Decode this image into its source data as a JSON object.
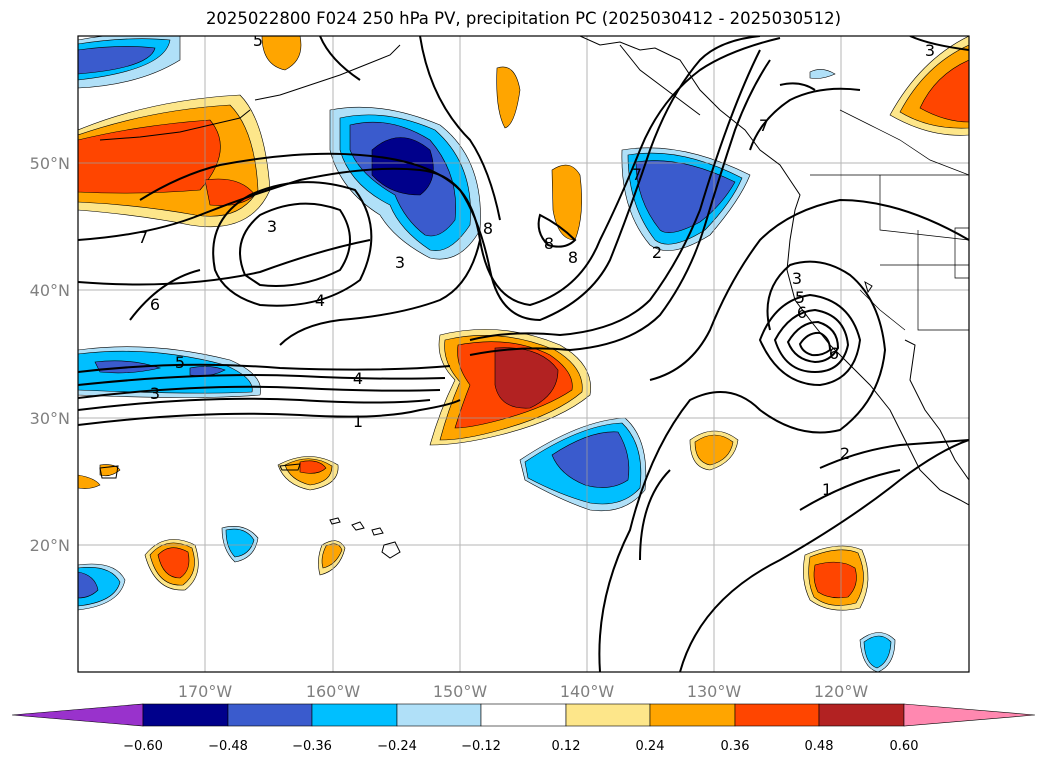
{
  "title": "2025022800 F024 250 hPa PV, precipitation PC (2025030412 - 2025030512)",
  "lat_labels": [
    "50°N",
    "40°N",
    "30°N",
    "20°N"
  ],
  "lon_labels": [
    "170°W",
    "160°W",
    "150°W",
    "140°W",
    "130°W",
    "120°W"
  ],
  "colorbar": {
    "ticks": [
      "−0.60",
      "−0.48",
      "−0.36",
      "−0.24",
      "−0.12",
      "0.12",
      "0.24",
      "0.36",
      "0.48",
      "0.60"
    ],
    "colors": [
      "#9932cc",
      "#00008b",
      "#3a5bcd",
      "#00bfff",
      "#b0e0f8",
      "#ffffff",
      "#fde68a",
      "#ffa500",
      "#ff4500",
      "#b22222",
      "#ff88b0"
    ]
  },
  "contour_labels": [
    "1",
    "2",
    "3",
    "4",
    "5",
    "6",
    "7",
    "8",
    "1",
    "2",
    "3",
    "4",
    "5",
    "6",
    "7",
    "8",
    "3",
    "3",
    "3",
    "5",
    "6",
    "7",
    "8",
    "1",
    "3",
    "4",
    "1",
    "6",
    "8"
  ]
}
